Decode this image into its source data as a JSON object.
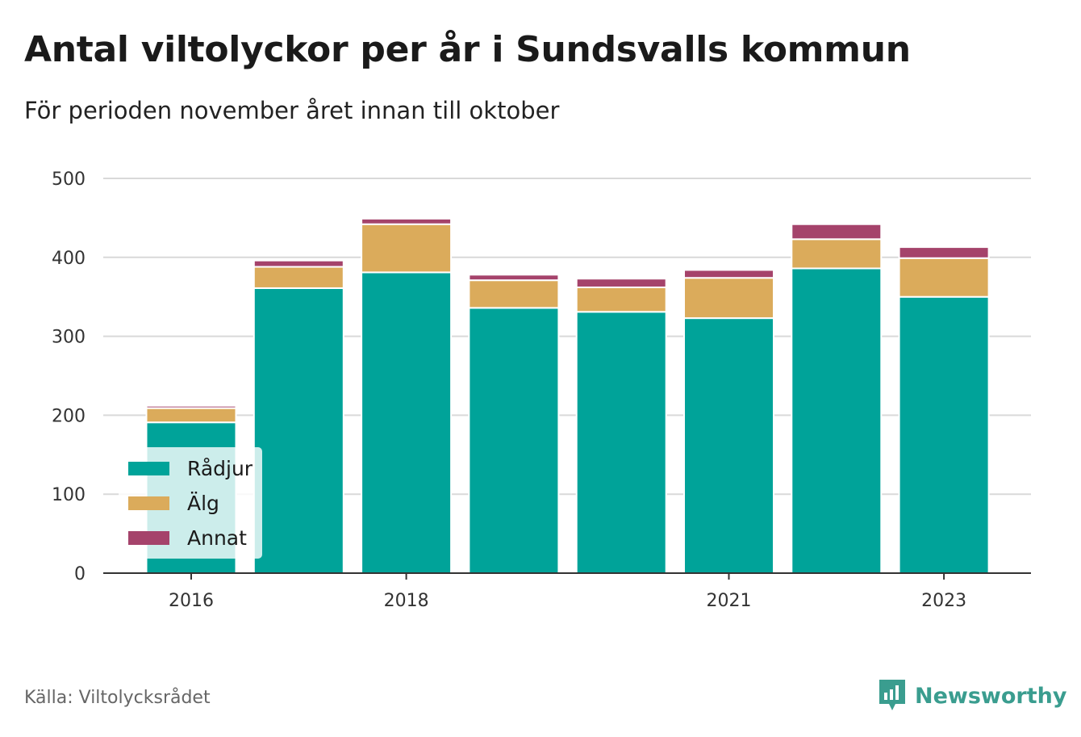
{
  "title": "Antal viltolyckor per år i Sundsvalls kommun",
  "subtitle": "För perioden november året innan till oktober",
  "source": "Källa: Viltolycksrådet",
  "brand": "Newsworthy",
  "chart_data": {
    "type": "bar",
    "stacked": true,
    "categories": [
      "2016",
      "2017",
      "2018",
      "2019",
      "2020",
      "2021",
      "2022",
      "2023"
    ],
    "x_tick_labels": [
      "2016",
      "",
      "2018",
      "",
      "",
      "2021",
      "",
      "2023"
    ],
    "series": [
      {
        "name": "Rådjur",
        "color": "#00a399",
        "values": [
          191,
          361,
          381,
          336,
          331,
          323,
          386,
          350
        ]
      },
      {
        "name": "Älg",
        "color": "#dbab5b",
        "values": [
          18,
          27,
          61,
          35,
          31,
          51,
          37,
          49
        ]
      },
      {
        "name": "Annat",
        "color": "#a5436b",
        "values": [
          3,
          8,
          7,
          7,
          11,
          10,
          19,
          14
        ]
      }
    ],
    "ylim": [
      0,
      500
    ],
    "yticks": [
      0,
      100,
      200,
      300,
      400,
      500
    ],
    "grid": true,
    "legend_position": "bottom-left"
  }
}
